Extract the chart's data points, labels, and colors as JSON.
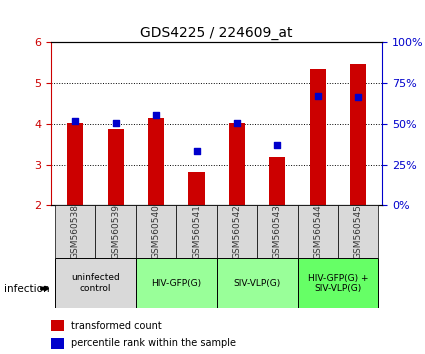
{
  "title": "GDS4225 / 224609_at",
  "samples": [
    "GSM560538",
    "GSM560539",
    "GSM560540",
    "GSM560541",
    "GSM560542",
    "GSM560543",
    "GSM560544",
    "GSM560545"
  ],
  "bar_values": [
    4.02,
    3.88,
    4.15,
    2.82,
    4.02,
    3.18,
    5.35,
    5.48
  ],
  "percentile_values": [
    4.08,
    4.02,
    4.22,
    3.33,
    4.02,
    3.48,
    4.68,
    4.65
  ],
  "ylim": [
    2,
    6
  ],
  "yticks": [
    2,
    3,
    4,
    5,
    6
  ],
  "bar_color": "#cc0000",
  "dot_color": "#0000cc",
  "sample_label_color": "#333333",
  "infection_label": "infection",
  "legend_bar_label": "transformed count",
  "legend_dot_label": "percentile rank within the sample",
  "bar_width": 0.4,
  "background_color": "#ffffff",
  "group_info": [
    {
      "label": "uninfected\ncontrol",
      "span": [
        0,
        1
      ],
      "color": "#d9d9d9"
    },
    {
      "label": "HIV-GFP(G)",
      "span": [
        2,
        3
      ],
      "color": "#99ff99"
    },
    {
      "label": "SIV-VLP(G)",
      "span": [
        4,
        5
      ],
      "color": "#99ff99"
    },
    {
      "label": "HIV-GFP(G) +\nSIV-VLP(G)",
      "span": [
        6,
        7
      ],
      "color": "#66ff66"
    }
  ]
}
